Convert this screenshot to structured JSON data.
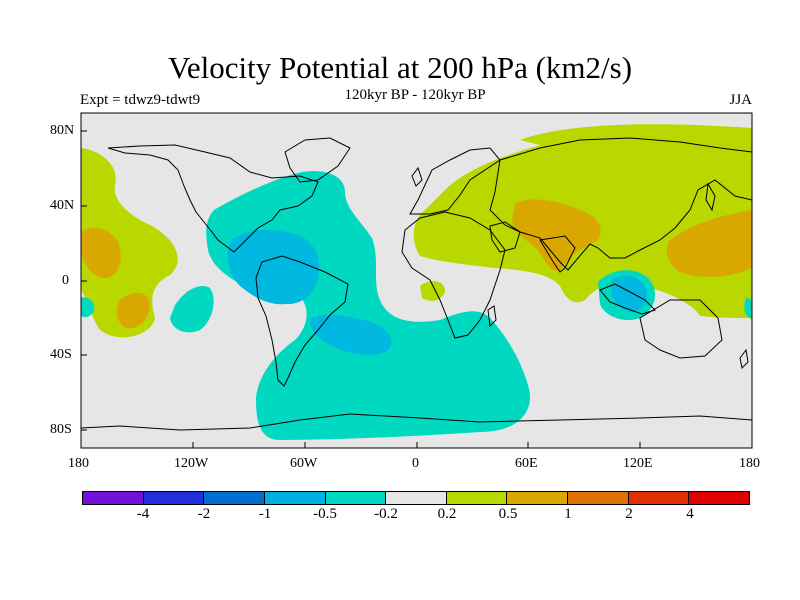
{
  "title": "Velocity Potential at 200 hPa (km2/s)",
  "subtitle": "120kyr BP - 120kyr BP",
  "expt": "Expt = tdwz9-tdwt9",
  "season": "JJA",
  "lat_labels": [
    "80N",
    "40N",
    "0",
    "40S",
    "80S"
  ],
  "lon_labels": [
    "180",
    "120W",
    "60W",
    "0",
    "60E",
    "120E",
    "180"
  ],
  "colorbar": {
    "colors": [
      "#7010d8",
      "#2030d8",
      "#0070d0",
      "#00b0e0",
      "#00d8c0",
      "#e6e6e6",
      "#b8d800",
      "#d8a800",
      "#e07000",
      "#e03000",
      "#e00000"
    ],
    "labels": [
      "-4",
      "-2",
      "-1",
      "-0.5",
      "-0.2",
      "0.2",
      "0.5",
      "1",
      "2",
      "4"
    ]
  },
  "palette": {
    "neutral": "#e6e6e6",
    "cyan": "#00d8c0",
    "blue": "#00b8e0",
    "green": "#b8d800",
    "orange": "#d8a800"
  }
}
